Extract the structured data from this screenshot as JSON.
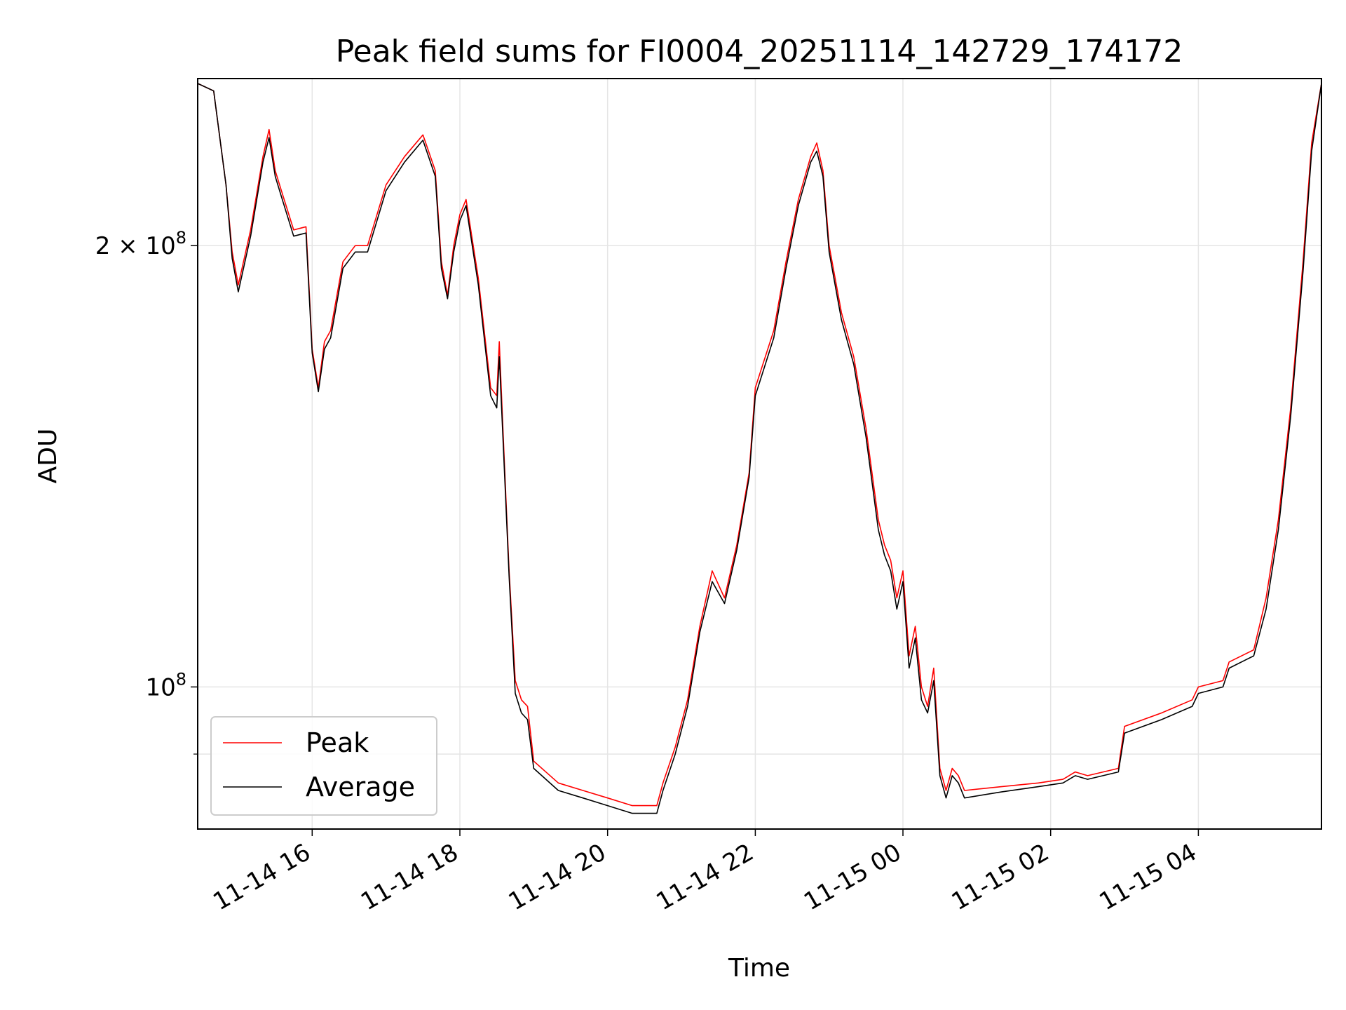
{
  "chart_data": {
    "type": "line",
    "title": "Peak field sums for FI0004_20251114_142729_174172",
    "xlabel": "Time",
    "ylabel": "ADU",
    "yscale": "log",
    "grid": true,
    "legend_position": "lower-left",
    "xlim": [
      "2025-11-14 14:27",
      "2025-11-15 05:40"
    ],
    "ylim": [
      80000000,
      260000000
    ],
    "x_ticks": [
      "11-14 16",
      "11-14 18",
      "11-14 20",
      "11-14 22",
      "11-15 00",
      "11-15 02",
      "11-15 04"
    ],
    "x_tick_values": [
      "2025-11-14 16:00",
      "2025-11-14 18:00",
      "2025-11-14 20:00",
      "2025-11-14 22:00",
      "2025-11-15 00:00",
      "2025-11-15 02:00",
      "2025-11-15 04:00"
    ],
    "y_ticks": [
      {
        "value": 100000000,
        "label": "10",
        "exp": "8"
      },
      {
        "value": 200000000,
        "label": "2 × 10",
        "exp": "8"
      }
    ],
    "y_minor_ticks": [
      90000000
    ],
    "series": [
      {
        "name": "Peak",
        "color": "#ff0000",
        "points": [
          [
            "2025-11-14 14:27",
            258000000
          ],
          [
            "2025-11-14 14:40",
            255000000
          ],
          [
            "2025-11-14 14:50",
            220000000
          ],
          [
            "2025-11-14 14:55",
            198000000
          ],
          [
            "2025-11-14 15:00",
            188000000
          ],
          [
            "2025-11-14 15:10",
            205000000
          ],
          [
            "2025-11-14 15:20",
            230000000
          ],
          [
            "2025-11-14 15:25",
            240000000
          ],
          [
            "2025-11-14 15:30",
            225000000
          ],
          [
            "2025-11-14 15:35",
            218000000
          ],
          [
            "2025-11-14 15:45",
            205000000
          ],
          [
            "2025-11-14 15:55",
            206000000
          ],
          [
            "2025-11-14 16:00",
            170000000
          ],
          [
            "2025-11-14 16:05",
            160000000
          ],
          [
            "2025-11-14 16:10",
            172000000
          ],
          [
            "2025-11-14 16:15",
            175000000
          ],
          [
            "2025-11-14 16:25",
            195000000
          ],
          [
            "2025-11-14 16:35",
            200000000
          ],
          [
            "2025-11-14 16:45",
            200000000
          ],
          [
            "2025-11-14 17:00",
            220000000
          ],
          [
            "2025-11-14 17:15",
            230000000
          ],
          [
            "2025-11-14 17:30",
            238000000
          ],
          [
            "2025-11-14 17:40",
            225000000
          ],
          [
            "2025-11-14 17:45",
            195000000
          ],
          [
            "2025-11-14 17:50",
            185000000
          ],
          [
            "2025-11-14 17:55",
            200000000
          ],
          [
            "2025-11-14 18:00",
            210000000
          ],
          [
            "2025-11-14 18:05",
            215000000
          ],
          [
            "2025-11-14 18:15",
            190000000
          ],
          [
            "2025-11-14 18:25",
            160000000
          ],
          [
            "2025-11-14 18:30",
            158000000
          ],
          [
            "2025-11-14 18:32",
            172000000
          ],
          [
            "2025-11-14 18:35",
            150000000
          ],
          [
            "2025-11-14 18:40",
            120000000
          ],
          [
            "2025-11-14 18:45",
            101000000
          ],
          [
            "2025-11-14 18:50",
            98000000
          ],
          [
            "2025-11-14 18:55",
            97000000
          ],
          [
            "2025-11-14 19:00",
            89000000
          ],
          [
            "2025-11-14 19:20",
            86000000
          ],
          [
            "2025-11-14 19:40",
            85000000
          ],
          [
            "2025-11-14 20:00",
            84000000
          ],
          [
            "2025-11-14 20:20",
            83000000
          ],
          [
            "2025-11-14 20:40",
            83000000
          ],
          [
            "2025-11-14 20:45",
            86000000
          ],
          [
            "2025-11-14 20:55",
            91000000
          ],
          [
            "2025-11-14 21:05",
            98000000
          ],
          [
            "2025-11-14 21:15",
            110000000
          ],
          [
            "2025-11-14 21:25",
            120000000
          ],
          [
            "2025-11-14 21:35",
            115000000
          ],
          [
            "2025-11-14 21:45",
            125000000
          ],
          [
            "2025-11-14 21:55",
            140000000
          ],
          [
            "2025-11-14 22:00",
            160000000
          ],
          [
            "2025-11-14 22:15",
            175000000
          ],
          [
            "2025-11-14 22:25",
            195000000
          ],
          [
            "2025-11-14 22:35",
            215000000
          ],
          [
            "2025-11-14 22:45",
            230000000
          ],
          [
            "2025-11-14 22:50",
            235000000
          ],
          [
            "2025-11-14 22:55",
            225000000
          ],
          [
            "2025-11-14 23:00",
            200000000
          ],
          [
            "2025-11-14 23:10",
            180000000
          ],
          [
            "2025-11-14 23:20",
            168000000
          ],
          [
            "2025-11-14 23:30",
            150000000
          ],
          [
            "2025-11-14 23:40",
            130000000
          ],
          [
            "2025-11-14 23:45",
            125000000
          ],
          [
            "2025-11-14 23:50",
            122000000
          ],
          [
            "2025-11-14 23:55",
            115000000
          ],
          [
            "2025-11-15 00:00",
            120000000
          ],
          [
            "2025-11-15 00:05",
            105000000
          ],
          [
            "2025-11-15 00:10",
            110000000
          ],
          [
            "2025-11-15 00:15",
            100000000
          ],
          [
            "2025-11-15 00:20",
            97000000
          ],
          [
            "2025-11-15 00:25",
            103000000
          ],
          [
            "2025-11-15 00:30",
            88000000
          ],
          [
            "2025-11-15 00:35",
            85000000
          ],
          [
            "2025-11-15 00:40",
            88000000
          ],
          [
            "2025-11-15 00:45",
            87000000
          ],
          [
            "2025-11-15 00:50",
            85000000
          ],
          [
            "2025-11-15 01:20",
            85500000
          ],
          [
            "2025-11-15 01:50",
            86000000
          ],
          [
            "2025-11-15 02:10",
            86500000
          ],
          [
            "2025-11-15 02:20",
            87500000
          ],
          [
            "2025-11-15 02:30",
            87000000
          ],
          [
            "2025-11-15 02:55",
            88000000
          ],
          [
            "2025-11-15 03:00",
            94000000
          ],
          [
            "2025-11-15 03:30",
            96000000
          ],
          [
            "2025-11-15 03:55",
            98000000
          ],
          [
            "2025-11-15 04:00",
            100000000
          ],
          [
            "2025-11-15 04:20",
            101000000
          ],
          [
            "2025-11-15 04:25",
            104000000
          ],
          [
            "2025-11-15 04:45",
            106000000
          ],
          [
            "2025-11-15 04:55",
            115000000
          ],
          [
            "2025-11-15 05:05",
            130000000
          ],
          [
            "2025-11-15 05:15",
            155000000
          ],
          [
            "2025-11-15 05:25",
            195000000
          ],
          [
            "2025-11-15 05:32",
            235000000
          ],
          [
            "2025-11-15 05:40",
            258000000
          ]
        ]
      },
      {
        "name": "Average",
        "color": "#000000",
        "points": [
          [
            "2025-11-14 14:27",
            258000000
          ],
          [
            "2025-11-14 14:40",
            255000000
          ],
          [
            "2025-11-14 14:50",
            220000000
          ],
          [
            "2025-11-14 14:55",
            196000000
          ],
          [
            "2025-11-14 15:00",
            186000000
          ],
          [
            "2025-11-14 15:10",
            203000000
          ],
          [
            "2025-11-14 15:20",
            228000000
          ],
          [
            "2025-11-14 15:25",
            237000000
          ],
          [
            "2025-11-14 15:30",
            223000000
          ],
          [
            "2025-11-14 15:35",
            216000000
          ],
          [
            "2025-11-14 15:45",
            203000000
          ],
          [
            "2025-11-14 15:55",
            204000000
          ],
          [
            "2025-11-14 16:00",
            169000000
          ],
          [
            "2025-11-14 16:05",
            159000000
          ],
          [
            "2025-11-14 16:10",
            170000000
          ],
          [
            "2025-11-14 16:15",
            173000000
          ],
          [
            "2025-11-14 16:25",
            193000000
          ],
          [
            "2025-11-14 16:35",
            198000000
          ],
          [
            "2025-11-14 16:45",
            198000000
          ],
          [
            "2025-11-14 17:00",
            218000000
          ],
          [
            "2025-11-14 17:15",
            228000000
          ],
          [
            "2025-11-14 17:30",
            236000000
          ],
          [
            "2025-11-14 17:40",
            223000000
          ],
          [
            "2025-11-14 17:45",
            193000000
          ],
          [
            "2025-11-14 17:50",
            184000000
          ],
          [
            "2025-11-14 17:55",
            198000000
          ],
          [
            "2025-11-14 18:00",
            208000000
          ],
          [
            "2025-11-14 18:05",
            213000000
          ],
          [
            "2025-11-14 18:15",
            188000000
          ],
          [
            "2025-11-14 18:25",
            158000000
          ],
          [
            "2025-11-14 18:30",
            155000000
          ],
          [
            "2025-11-14 18:32",
            168000000
          ],
          [
            "2025-11-14 18:35",
            148000000
          ],
          [
            "2025-11-14 18:40",
            119000000
          ],
          [
            "2025-11-14 18:45",
            99000000
          ],
          [
            "2025-11-14 18:50",
            96000000
          ],
          [
            "2025-11-14 18:55",
            95000000
          ],
          [
            "2025-11-14 19:00",
            88000000
          ],
          [
            "2025-11-14 19:20",
            85000000
          ],
          [
            "2025-11-14 19:40",
            84000000
          ],
          [
            "2025-11-14 20:00",
            83000000
          ],
          [
            "2025-11-14 20:20",
            82000000
          ],
          [
            "2025-11-14 20:40",
            82000000
          ],
          [
            "2025-11-14 20:45",
            85000000
          ],
          [
            "2025-11-14 20:55",
            90000000
          ],
          [
            "2025-11-14 21:05",
            97000000
          ],
          [
            "2025-11-14 21:15",
            109000000
          ],
          [
            "2025-11-14 21:25",
            118000000
          ],
          [
            "2025-11-14 21:35",
            114000000
          ],
          [
            "2025-11-14 21:45",
            124000000
          ],
          [
            "2025-11-14 21:55",
            139000000
          ],
          [
            "2025-11-14 22:00",
            158000000
          ],
          [
            "2025-11-14 22:15",
            173000000
          ],
          [
            "2025-11-14 22:25",
            193000000
          ],
          [
            "2025-11-14 22:35",
            213000000
          ],
          [
            "2025-11-14 22:45",
            228000000
          ],
          [
            "2025-11-14 22:50",
            232000000
          ],
          [
            "2025-11-14 22:55",
            223000000
          ],
          [
            "2025-11-14 23:00",
            198000000
          ],
          [
            "2025-11-14 23:10",
            178000000
          ],
          [
            "2025-11-14 23:20",
            166000000
          ],
          [
            "2025-11-14 23:30",
            148000000
          ],
          [
            "2025-11-14 23:40",
            128000000
          ],
          [
            "2025-11-14 23:45",
            123000000
          ],
          [
            "2025-11-14 23:50",
            120000000
          ],
          [
            "2025-11-14 23:55",
            113000000
          ],
          [
            "2025-11-15 00:00",
            118000000
          ],
          [
            "2025-11-15 00:05",
            103000000
          ],
          [
            "2025-11-15 00:10",
            108000000
          ],
          [
            "2025-11-15 00:15",
            98000000
          ],
          [
            "2025-11-15 00:20",
            96000000
          ],
          [
            "2025-11-15 00:25",
            101000000
          ],
          [
            "2025-11-15 00:30",
            87000000
          ],
          [
            "2025-11-15 00:35",
            84000000
          ],
          [
            "2025-11-15 00:40",
            87000000
          ],
          [
            "2025-11-15 00:45",
            86000000
          ],
          [
            "2025-11-15 00:50",
            84000000
          ],
          [
            "2025-11-15 01:20",
            84800000
          ],
          [
            "2025-11-15 01:50",
            85500000
          ],
          [
            "2025-11-15 02:10",
            86000000
          ],
          [
            "2025-11-15 02:20",
            87000000
          ],
          [
            "2025-11-15 02:30",
            86500000
          ],
          [
            "2025-11-15 02:55",
            87500000
          ],
          [
            "2025-11-15 03:00",
            93000000
          ],
          [
            "2025-11-15 03:30",
            95000000
          ],
          [
            "2025-11-15 03:55",
            97000000
          ],
          [
            "2025-11-15 04:00",
            99000000
          ],
          [
            "2025-11-15 04:20",
            100000000
          ],
          [
            "2025-11-15 04:25",
            103000000
          ],
          [
            "2025-11-15 04:45",
            105000000
          ],
          [
            "2025-11-15 04:55",
            113000000
          ],
          [
            "2025-11-15 05:05",
            128000000
          ],
          [
            "2025-11-15 05:15",
            153000000
          ],
          [
            "2025-11-15 05:25",
            192000000
          ],
          [
            "2025-11-15 05:32",
            232000000
          ],
          [
            "2025-11-15 05:40",
            258000000
          ]
        ]
      }
    ]
  }
}
